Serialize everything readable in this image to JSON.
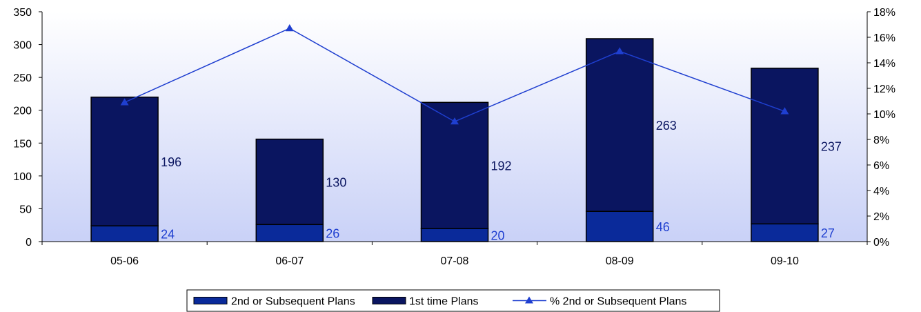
{
  "chart_data": {
    "type": "bar",
    "stacked": true,
    "categories": [
      "05-06",
      "06-07",
      "07-08",
      "08-09",
      "09-10"
    ],
    "series": [
      {
        "name": "2nd or Subsequent Plans",
        "type": "bar",
        "axis": "left",
        "values": [
          24,
          26,
          20,
          46,
          27
        ],
        "color": "#0a2a9a"
      },
      {
        "name": "1st time Plans",
        "type": "bar",
        "axis": "left",
        "values": [
          196,
          130,
          192,
          263,
          237
        ],
        "color": "#0a1560"
      },
      {
        "name": "% 2nd or Subsequent Plans",
        "type": "line",
        "axis": "right",
        "values": [
          10.9,
          16.7,
          9.4,
          14.9,
          10.2
        ],
        "color": "#1f3fd0",
        "marker": "triangle"
      }
    ],
    "y_left": {
      "min": 0,
      "max": 350,
      "step": 50,
      "ticks": [
        "0",
        "50",
        "100",
        "150",
        "200",
        "250",
        "300",
        "350"
      ]
    },
    "y_right": {
      "min": 0,
      "max": 18,
      "step": 2,
      "ticks": [
        "0%",
        "2%",
        "4%",
        "6%",
        "8%",
        "10%",
        "12%",
        "14%",
        "16%",
        "18%"
      ]
    },
    "legend": {
      "position": "bottom"
    },
    "grid": false,
    "background_gradient": [
      "#ffffff",
      "#c9d1f7"
    ],
    "label_colors": {
      "first": "#0a1560",
      "second": "#1f3fd0"
    }
  }
}
